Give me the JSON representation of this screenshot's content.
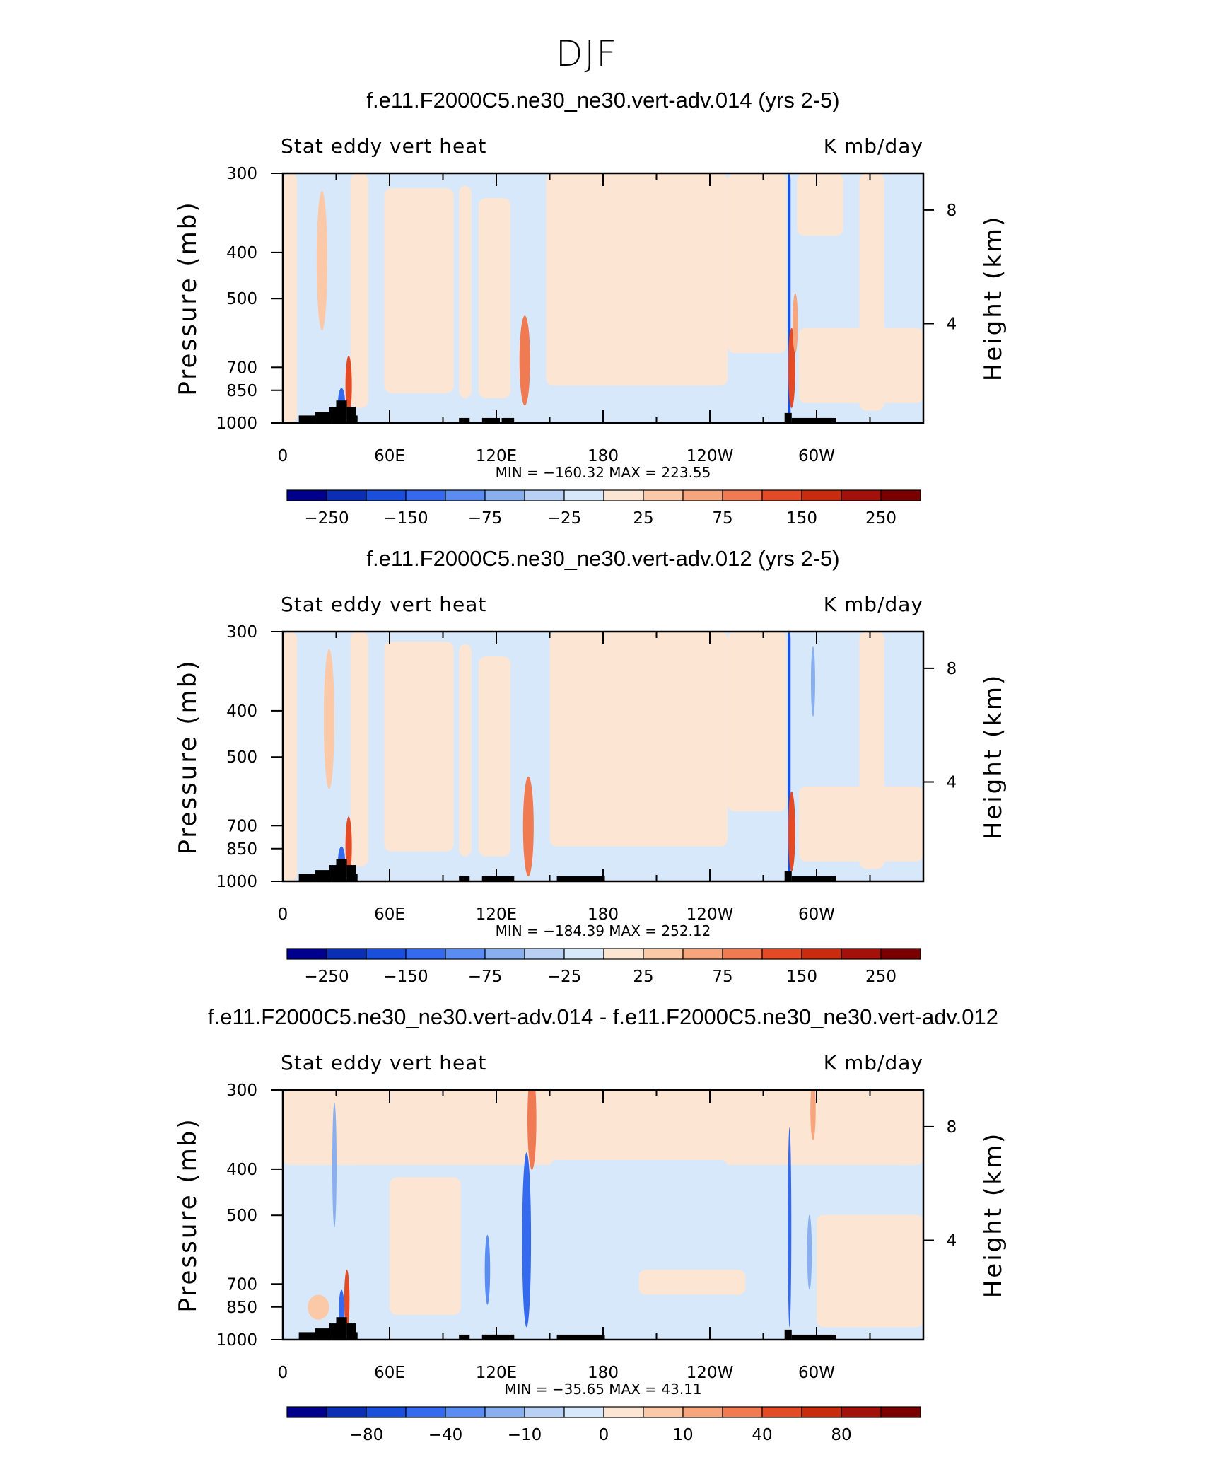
{
  "figure_title": "DJF",
  "chart_data": [
    {
      "type": "heatmap",
      "title": "f.e11.F2000C5.ne30_ne30.vert-adv.014 (yrs 2-5)",
      "left_label": "Stat eddy vert heat",
      "right_label": "K mb/day",
      "ylabel": "Pressure (mb)",
      "ylabel_right": "Height (km)",
      "x_ticks": [
        "0",
        "60E",
        "120E",
        "180",
        "120W",
        "60W"
      ],
      "y_ticks": [
        "300",
        "400",
        "500",
        "700",
        "850",
        "1000"
      ],
      "right_ticks": [
        "8",
        "4"
      ],
      "min_max_text": "MIN = −160.32   MAX = 223.55",
      "min": -160.32,
      "max": 223.55,
      "colorbar_labels": [
        "−250",
        "−150",
        "−75",
        "−25",
        "25",
        "75",
        "150",
        "250"
      ]
    },
    {
      "type": "heatmap",
      "title": "f.e11.F2000C5.ne30_ne30.vert-adv.012 (yrs 2-5)",
      "left_label": "Stat eddy vert heat",
      "right_label": "K mb/day",
      "ylabel": "Pressure (mb)",
      "ylabel_right": "Height (km)",
      "x_ticks": [
        "0",
        "60E",
        "120E",
        "180",
        "120W",
        "60W"
      ],
      "y_ticks": [
        "300",
        "400",
        "500",
        "700",
        "850",
        "1000"
      ],
      "right_ticks": [
        "8",
        "4"
      ],
      "min_max_text": "MIN = −184.39   MAX = 252.12",
      "min": -184.39,
      "max": 252.12,
      "colorbar_labels": [
        "−250",
        "−150",
        "−75",
        "−25",
        "25",
        "75",
        "150",
        "250"
      ]
    },
    {
      "type": "heatmap",
      "title": "f.e11.F2000C5.ne30_ne30.vert-adv.014 - f.e11.F2000C5.ne30_ne30.vert-adv.012",
      "left_label": "Stat eddy vert heat",
      "right_label": "K mb/day",
      "ylabel": "Pressure (mb)",
      "ylabel_right": "Height (km)",
      "x_ticks": [
        "0",
        "60E",
        "120E",
        "180",
        "120W",
        "60W"
      ],
      "y_ticks": [
        "300",
        "400",
        "500",
        "700",
        "850",
        "1000"
      ],
      "right_ticks": [
        "8",
        "4"
      ],
      "min_max_text": "MIN = −35.65   MAX =   43.11",
      "min": -35.65,
      "max": 43.11,
      "colorbar_labels": [
        "−80",
        "−40",
        "−10",
        "0",
        "10",
        "40",
        "80"
      ]
    }
  ],
  "colors": {
    "colorbar": [
      "#00008c",
      "#0a2fb4",
      "#1a4fdc",
      "#3569ee",
      "#5b8cf2",
      "#8aafef",
      "#b8d0f3",
      "#d8e8fb",
      "#fde5d3",
      "#fbc8a8",
      "#f7a57d",
      "#f07a52",
      "#e34a26",
      "#c82b0e",
      "#a3120a",
      "#7a0000"
    ],
    "light_blue": "#d8e8fb",
    "light_peach": "#fde5d3",
    "topography": "#000000"
  }
}
